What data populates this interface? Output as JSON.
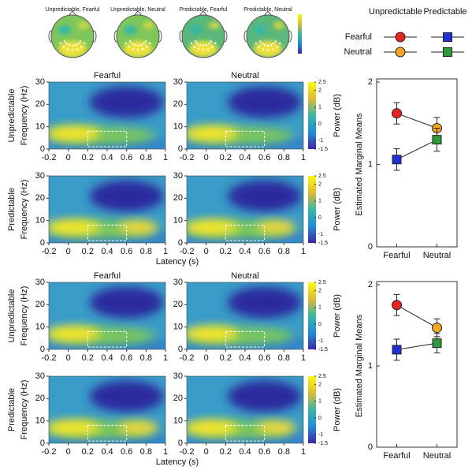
{
  "topomaps": {
    "labels": [
      "Unpredictable, Fearful",
      "Unpredictable, Neutral",
      "Predictable, Fearful",
      "Predictable, Neutral"
    ]
  },
  "chart_data": [
    {
      "type": "heatmap",
      "columns": [
        "Fearful",
        "Neutral"
      ],
      "rows": [
        "Unpredictable",
        "Predictable"
      ],
      "ylabel": "Frequency (Hz)",
      "xlabel": "Latency (s)",
      "xlim": [
        -0.2,
        1
      ],
      "xticks": [
        -0.2,
        0,
        0.2,
        0.4,
        0.6,
        0.8,
        1
      ],
      "ylim": [
        0,
        30
      ],
      "yticks": [
        0,
        10,
        20,
        30
      ],
      "roi": {
        "x": [
          0.2,
          0.6
        ],
        "y": [
          1,
          8
        ]
      },
      "colorbar": {
        "label": "Power (dB)",
        "lim": [
          -1.5,
          2.5
        ],
        "ticks": [
          -1.5,
          -1,
          0,
          1,
          2,
          2.5
        ]
      }
    },
    {
      "type": "line",
      "ylabel": "Estimated Marginal Means",
      "categories": [
        "Fearful",
        "Neutral"
      ],
      "ylim": [
        0,
        2
      ],
      "yticks": [
        0,
        1,
        2
      ],
      "series": [
        {
          "name": "Unpredictable",
          "marker": "circle",
          "point_colors": [
            "#e8231f",
            "#f5a623"
          ],
          "values": [
            1.62,
            1.44
          ],
          "errors": [
            0.13,
            0.13
          ]
        },
        {
          "name": "Predictable",
          "marker": "square",
          "point_colors": [
            "#1f2fd6",
            "#2e9a3a"
          ],
          "values": [
            1.06,
            1.3
          ],
          "errors": [
            0.13,
            0.14
          ]
        }
      ]
    },
    {
      "type": "heatmap",
      "columns": [
        "Fearful",
        "Neutral"
      ],
      "rows": [
        "Unpredictable",
        "Predictable"
      ],
      "ylabel": "Frequency (Hz)",
      "xlabel": "Latency (s)",
      "xlim": [
        -0.2,
        1
      ],
      "xticks": [
        -0.2,
        0,
        0.2,
        0.4,
        0.6,
        0.8,
        1
      ],
      "ylim": [
        0,
        30
      ],
      "yticks": [
        0,
        10,
        20,
        30
      ],
      "roi": {
        "x": [
          0.2,
          0.6
        ],
        "y": [
          1,
          8
        ]
      },
      "colorbar": {
        "label": "Power (dB)",
        "lim": [
          -1.5,
          2.5
        ],
        "ticks": [
          -1.5,
          -1,
          0,
          1,
          2,
          2.5
        ]
      }
    },
    {
      "type": "line",
      "ylabel": "Estimated Marginal Means",
      "categories": [
        "Fearful",
        "Neutral"
      ],
      "ylim": [
        0,
        2
      ],
      "yticks": [
        0,
        1,
        2
      ],
      "series": [
        {
          "name": "Unpredictable",
          "marker": "circle",
          "point_colors": [
            "#e8231f",
            "#f5a623"
          ],
          "values": [
            1.75,
            1.47
          ],
          "errors": [
            0.13,
            0.11
          ]
        },
        {
          "name": "Predictable",
          "marker": "square",
          "point_colors": [
            "#1f2fd6",
            "#2e9a3a"
          ],
          "values": [
            1.2,
            1.28
          ],
          "errors": [
            0.13,
            0.12
          ]
        }
      ]
    }
  ]
}
